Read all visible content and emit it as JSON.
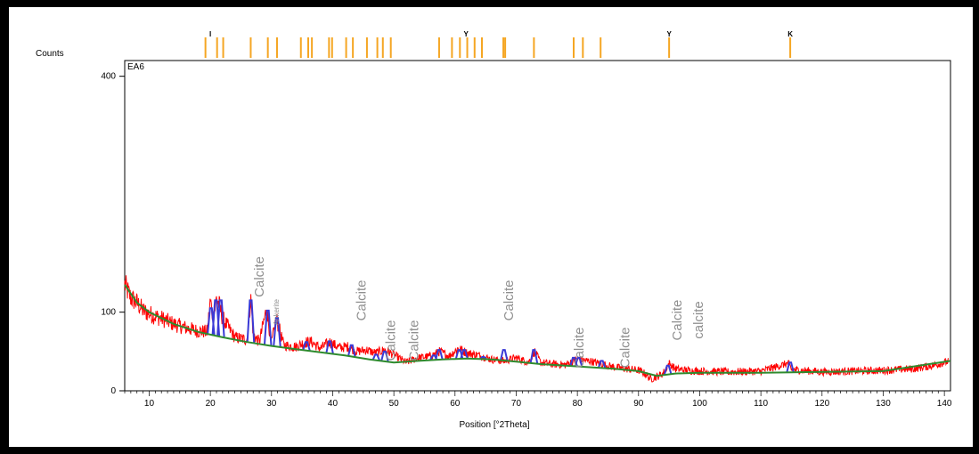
{
  "chart_data": {
    "type": "line",
    "sample_label": "EA6",
    "ylabel": "Counts",
    "xlabel": "Position [°2Theta]",
    "xlim": [
      6,
      141
    ],
    "ylim": [
      0,
      420
    ],
    "x_ticks": [
      10,
      20,
      30,
      40,
      50,
      60,
      70,
      80,
      90,
      100,
      110,
      120,
      130,
      140
    ],
    "y_ticks": [
      0,
      100,
      400
    ],
    "colors": {
      "observed": "#ff0000",
      "background": "#2e8b2e",
      "peaks": "#3a3ad6",
      "reference": "#f5a623",
      "annotation": "#8f8f8f"
    },
    "series": [
      {
        "name": "observed",
        "x": [
          6,
          7,
          8,
          9,
          10,
          12,
          14,
          16,
          18,
          19.5,
          20,
          20.5,
          21,
          21.5,
          22,
          24,
          26,
          26.6,
          27,
          28,
          29.2,
          30,
          30.8,
          32,
          34,
          35.5,
          36.5,
          38,
          39.5,
          41,
          42.5,
          44,
          45.5,
          47,
          48.5,
          50,
          52,
          54,
          56,
          57.5,
          59,
          60.5,
          62,
          64,
          66,
          68,
          70,
          72,
          73,
          74,
          76,
          78,
          80,
          82,
          84,
          86,
          88,
          90,
          91,
          92,
          93,
          94,
          95,
          96,
          98,
          100,
          105,
          110,
          114.5,
          115,
          120,
          125,
          130,
          135,
          138,
          141
        ],
        "y": [
          135,
          118,
          112,
          102,
          98,
          92,
          85,
          80,
          76,
          75,
          115,
          90,
          118,
          108,
          92,
          68,
          65,
          118,
          72,
          62,
          104,
          60,
          92,
          58,
          56,
          62,
          62,
          54,
          62,
          55,
          56,
          50,
          52,
          48,
          52,
          46,
          36,
          42,
          44,
          50,
          44,
          54,
          48,
          45,
          40,
          38,
          42,
          36,
          50,
          36,
          34,
          33,
          40,
          38,
          34,
          30,
          28,
          26,
          22,
          15,
          18,
          22,
          35,
          28,
          26,
          25,
          24,
          25,
          35,
          27,
          24,
          25,
          26,
          28,
          32,
          38
        ]
      },
      {
        "name": "background",
        "x": [
          6,
          8,
          10,
          14,
          18,
          22,
          26,
          30,
          34,
          38,
          42,
          46,
          50,
          54,
          58,
          62,
          66,
          70,
          74,
          78,
          82,
          86,
          90,
          93,
          96,
          100,
          110,
          120,
          130,
          141
        ],
        "y": [
          135,
          112,
          100,
          85,
          75,
          68,
          62,
          57,
          53,
          49,
          45,
          40,
          36,
          38,
          40,
          41,
          40,
          37,
          34,
          32,
          30,
          28,
          25,
          19,
          22,
          23,
          23,
          24,
          25,
          38
        ]
      },
      {
        "name": "peaks",
        "x": [
          20.1,
          20.9,
          21.7,
          26.6,
          29.4,
          30.9,
          35.7,
          39.5,
          43.1,
          47.1,
          48.5,
          56.5,
          57.4,
          60.7,
          61.5,
          64.6,
          68,
          72.9,
          79.4,
          80.2,
          84,
          94.8,
          114.8
        ],
        "y": [
          105,
          115,
          115,
          115,
          102,
          93,
          62,
          63,
          58,
          46,
          50,
          45,
          52,
          52,
          52,
          43,
          52,
          52,
          42,
          42,
          38,
          32,
          36
        ]
      }
    ],
    "reference_ticks": [
      19.2,
      21.1,
      22.1,
      26.6,
      29.4,
      30.9,
      34.8,
      36.0,
      36.6,
      39.4,
      39.9,
      42.2,
      43.3,
      45.6,
      47.3,
      48.2,
      49.5,
      57.4,
      59.5,
      60.8,
      62.0,
      63.2,
      64.4,
      67.9,
      68.2,
      72.9,
      79.4,
      80.9,
      83.8,
      95.0,
      114.8
    ],
    "phase_markers": [
      {
        "x": 20.0,
        "label": "I"
      },
      {
        "x": 61.8,
        "label": "Y"
      },
      {
        "x": 95.0,
        "label": "Y"
      },
      {
        "x": 114.8,
        "label": "K"
      }
    ],
    "annotations": [
      {
        "text": "Calcite",
        "x": 28.7,
        "y": 145
      },
      {
        "text": "Ankerite",
        "x": 31.2,
        "y": 100
      },
      {
        "text": "Calcite",
        "x": 45.4,
        "y": 115
      },
      {
        "text": "Calcite",
        "x": 50.2,
        "y": 64
      },
      {
        "text": "Calcite",
        "x": 54.0,
        "y": 64
      },
      {
        "text": "Calcite",
        "x": 69.5,
        "y": 115
      },
      {
        "text": "Calcite",
        "x": 81.0,
        "y": 55
      },
      {
        "text": "Calcite",
        "x": 88.5,
        "y": 55
      },
      {
        "text": "Calcite",
        "x": 97.0,
        "y": 90
      },
      {
        "text": "calcite",
        "x": 100.5,
        "y": 90
      }
    ]
  }
}
